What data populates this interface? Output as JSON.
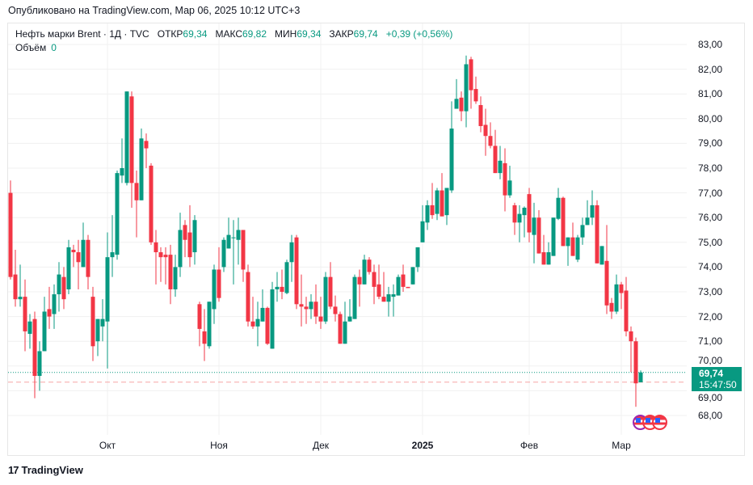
{
  "published": "Опубликовано на TradingView.com, Мар 06, 2025 10:12 UTC+3",
  "legend": {
    "symbol": "Нефть марки Brent · 1Д · TVC",
    "open_label": "ОТКР",
    "open": "69,34",
    "high_label": "МАКС",
    "high": "69,82",
    "low_label": "МИН",
    "low": "69,34",
    "close_label": "ЗАКР",
    "close": "69,74",
    "change": "+0,39 (+0,56%)",
    "volume_label": "Объём",
    "volume": "0"
  },
  "current_price": {
    "price": "69,74",
    "countdown": "15:47:50"
  },
  "footer": {
    "brand": "TradingView"
  },
  "colors": {
    "up": "#089981",
    "down": "#F23645",
    "grid": "#f0f0f0"
  },
  "chart_data": {
    "type": "candlestick",
    "title": "Нефть марки Brent · 1Д · TVC",
    "ylim": [
      67.5,
      83.5
    ],
    "y_ticks": [
      "83,00",
      "82,00",
      "81,00",
      "80,00",
      "79,00",
      "78,00",
      "77,00",
      "76,00",
      "75,00",
      "74,00",
      "73,00",
      "72,00",
      "71,00",
      "70,00",
      "69,00",
      "68,00"
    ],
    "y_tick_values": [
      83,
      82,
      81,
      80,
      79,
      78,
      77,
      76,
      75,
      74,
      73,
      72,
      71,
      70,
      69,
      68
    ],
    "x_ticks": [
      {
        "label": "Окт",
        "index": 20,
        "bold": false
      },
      {
        "label": "Ноя",
        "index": 43,
        "bold": false
      },
      {
        "label": "Дек",
        "index": 64,
        "bold": false
      },
      {
        "label": "2025",
        "index": 85,
        "bold": true
      },
      {
        "label": "Фев",
        "index": 107,
        "bold": false
      },
      {
        "label": "Мар",
        "index": 126,
        "bold": false
      }
    ],
    "last_price": 69.74,
    "prev_close": 69.35,
    "candles_ohlc": [
      [
        77.0,
        77.5,
        73.5,
        73.6
      ],
      [
        73.7,
        74.7,
        72.4,
        72.7
      ],
      [
        72.7,
        74.1,
        72.4,
        72.8
      ],
      [
        72.8,
        73.5,
        70.6,
        71.4
      ],
      [
        71.3,
        72.1,
        70.7,
        71.8
      ],
      [
        71.9,
        72.2,
        68.7,
        69.6
      ],
      [
        69.6,
        71.0,
        69.0,
        70.6
      ],
      [
        70.6,
        72.8,
        70.6,
        72.2
      ],
      [
        72.3,
        73.2,
        71.5,
        72.0
      ],
      [
        72.1,
        73.3,
        71.5,
        72.9
      ],
      [
        72.9,
        74.2,
        72.2,
        73.7
      ],
      [
        73.6,
        74.0,
        72.3,
        72.7
      ],
      [
        73.1,
        75.1,
        72.9,
        74.8
      ],
      [
        74.7,
        74.9,
        74.0,
        74.6
      ],
      [
        74.6,
        75.1,
        73.1,
        74.2
      ],
      [
        74.0,
        75.8,
        74.0,
        75.1
      ],
      [
        75.1,
        75.3,
        73.1,
        73.6
      ],
      [
        72.8,
        73.2,
        70.2,
        70.8
      ],
      [
        71.0,
        71.9,
        70.4,
        71.9
      ],
      [
        71.6,
        72.7,
        71.0,
        71.9
      ],
      [
        71.8,
        75.4,
        69.9,
        74.4
      ],
      [
        74.4,
        76.1,
        73.6,
        74.6
      ],
      [
        74.5,
        77.9,
        74.3,
        77.8
      ],
      [
        77.7,
        79.2,
        77.4,
        78.0
      ],
      [
        77.4,
        81.1,
        77.3,
        81.1
      ],
      [
        80.9,
        81.1,
        76.4,
        77.4
      ],
      [
        77.4,
        77.9,
        75.2,
        76.7
      ],
      [
        76.7,
        79.6,
        76.7,
        79.2
      ],
      [
        79.1,
        79.4,
        78.0,
        78.8
      ],
      [
        78.1,
        78.2,
        74.9,
        75.0
      ],
      [
        75.0,
        75.5,
        73.3,
        74.6
      ],
      [
        74.6,
        74.8,
        73.4,
        74.4
      ],
      [
        74.5,
        74.8,
        73.3,
        74.4
      ],
      [
        74.5,
        74.9,
        72.5,
        73.1
      ],
      [
        73.1,
        74.5,
        72.8,
        74.0
      ],
      [
        74.0,
        76.2,
        73.6,
        75.5
      ],
      [
        75.7,
        75.9,
        74.4,
        75.1
      ],
      [
        75.4,
        76.5,
        74.0,
        74.4
      ],
      [
        74.6,
        76.1,
        74.1,
        75.9
      ],
      [
        72.5,
        72.6,
        70.8,
        71.5
      ],
      [
        71.4,
        72.3,
        70.2,
        70.9
      ],
      [
        70.8,
        72.6,
        70.7,
        72.6
      ],
      [
        72.3,
        74.1,
        71.7,
        73.9
      ],
      [
        73.9,
        74.8,
        72.6,
        72.75
      ],
      [
        74.0,
        75.2,
        73.8,
        75.1
      ],
      [
        74.75,
        76.0,
        74.75,
        75.3
      ],
      [
        75.2,
        75.9,
        73.3,
        75.2
      ],
      [
        75.1,
        76.0,
        74.1,
        75.5
      ],
      [
        75.5,
        75.5,
        73.4,
        73.9
      ],
      [
        73.8,
        74.1,
        71.6,
        71.8
      ],
      [
        71.8,
        72.8,
        71.5,
        71.6
      ],
      [
        71.6,
        72.6,
        70.8,
        71.9
      ],
      [
        71.8,
        73.1,
        71.8,
        72.35
      ],
      [
        72.35,
        72.4,
        70.85,
        70.9
      ],
      [
        70.7,
        73.4,
        70.7,
        73.1
      ],
      [
        73.1,
        73.8,
        72.6,
        73.2
      ],
      [
        73.2,
        73.9,
        72.7,
        73.0
      ],
      [
        72.95,
        74.3,
        72.9,
        74.2
      ],
      [
        74.2,
        75.3,
        73.4,
        75.0
      ],
      [
        75.2,
        75.3,
        72.3,
        72.5
      ],
      [
        72.5,
        73.7,
        71.6,
        72.4
      ],
      [
        72.4,
        72.8,
        71.7,
        72.3
      ],
      [
        72.3,
        72.9,
        71.9,
        72.6
      ],
      [
        72.6,
        73.3,
        71.7,
        72.0
      ],
      [
        72.0,
        72.8,
        71.5,
        71.8
      ],
      [
        71.8,
        73.8,
        71.7,
        73.6
      ],
      [
        73.6,
        74.2,
        72.3,
        72.4
      ],
      [
        72.4,
        72.85,
        71.8,
        72.1
      ],
      [
        72.1,
        72.2,
        70.9,
        70.9
      ],
      [
        70.9,
        72.6,
        70.9,
        71.8
      ],
      [
        71.8,
        72.7,
        71.8,
        72.0
      ],
      [
        71.9,
        73.7,
        71.9,
        73.6
      ],
      [
        73.6,
        73.9,
        72.4,
        73.3
      ],
      [
        73.3,
        74.5,
        73.3,
        74.3
      ],
      [
        74.3,
        74.4,
        73.7,
        73.8
      ],
      [
        73.8,
        74.1,
        72.5,
        73.2
      ],
      [
        73.3,
        74.1,
        72.7,
        72.8
      ],
      [
        72.8,
        73.8,
        72.6,
        72.6
      ],
      [
        72.6,
        73.2,
        72.0,
        72.9
      ],
      [
        72.8,
        73.3,
        72.0,
        72.9
      ],
      [
        72.85,
        73.7,
        72.85,
        73.6
      ],
      [
        73.7,
        74.1,
        73.0,
        73.2
      ],
      [
        73.2,
        73.2,
        73.2,
        73.15
      ],
      [
        73.3,
        74.0,
        73.3,
        74.0
      ],
      [
        74.0,
        74.8,
        73.8,
        74.8
      ],
      [
        75.0,
        76.5,
        75.0,
        75.85
      ],
      [
        75.8,
        76.7,
        75.5,
        76.5
      ],
      [
        76.5,
        77.4,
        75.95,
        76.1
      ],
      [
        76.15,
        77.2,
        75.9,
        77.1
      ],
      [
        77.1,
        77.8,
        76.05,
        76.05
      ],
      [
        76.1,
        77.2,
        75.7,
        77.2
      ],
      [
        77.1,
        80.7,
        77.0,
        79.6
      ],
      [
        80.4,
        81.6,
        80.4,
        80.8
      ],
      [
        80.85,
        81.1,
        79.9,
        80.3
      ],
      [
        80.3,
        82.55,
        79.65,
        82.2
      ],
      [
        82.4,
        82.5,
        80.4,
        81.15
      ],
      [
        81.2,
        81.7,
        80.6,
        80.7
      ],
      [
        80.55,
        80.9,
        79.45,
        79.7
      ],
      [
        79.75,
        80.4,
        78.5,
        79.3
      ],
      [
        79.3,
        79.85,
        78.8,
        78.9
      ],
      [
        78.9,
        79.55,
        77.8,
        77.8
      ],
      [
        77.8,
        78.9,
        77.55,
        78.3
      ],
      [
        78.2,
        78.8,
        76.25,
        76.9
      ],
      [
        76.9,
        78.1,
        76.8,
        77.5
      ],
      [
        76.5,
        76.6,
        75.3,
        75.8
      ],
      [
        75.8,
        76.5,
        75.0,
        76.15
      ],
      [
        76.1,
        76.45,
        75.2,
        76.4
      ],
      [
        76.95,
        77.2,
        75.0,
        75.4
      ],
      [
        75.3,
        76.6,
        74.15,
        76.0
      ],
      [
        76.0,
        76.3,
        74.55,
        74.55
      ],
      [
        74.6,
        75.3,
        74.1,
        74.1
      ],
      [
        74.1,
        75.0,
        74.1,
        74.6
      ],
      [
        74.45,
        76.0,
        74.45,
        76.0
      ],
      [
        75.95,
        77.2,
        75.9,
        76.8
      ],
      [
        76.8,
        76.85,
        74.85,
        74.85
      ],
      [
        74.85,
        75.2,
        74.05,
        75.2
      ],
      [
        75.2,
        75.8,
        74.45,
        74.45
      ],
      [
        74.3,
        75.3,
        74.2,
        75.2
      ],
      [
        75.2,
        76.0,
        74.9,
        75.7
      ],
      [
        75.7,
        76.7,
        75.7,
        76.0
      ],
      [
        76.0,
        77.1,
        75.7,
        76.5
      ],
      [
        76.5,
        76.7,
        74.15,
        74.15
      ],
      [
        74.1,
        74.85,
        74.1,
        74.85
      ],
      [
        74.25,
        75.7,
        72.1,
        72.45
      ],
      [
        72.55,
        72.75,
        71.9,
        72.2
      ],
      [
        72.2,
        73.7,
        72.1,
        73.3
      ],
      [
        73.3,
        73.4,
        72.3,
        72.95
      ],
      [
        73.05,
        73.6,
        71.2,
        71.4
      ],
      [
        71.4,
        71.6,
        69.75,
        71.0
      ],
      [
        71.0,
        71.15,
        68.35,
        69.3
      ],
      [
        69.34,
        69.82,
        69.34,
        69.74
      ]
    ]
  }
}
